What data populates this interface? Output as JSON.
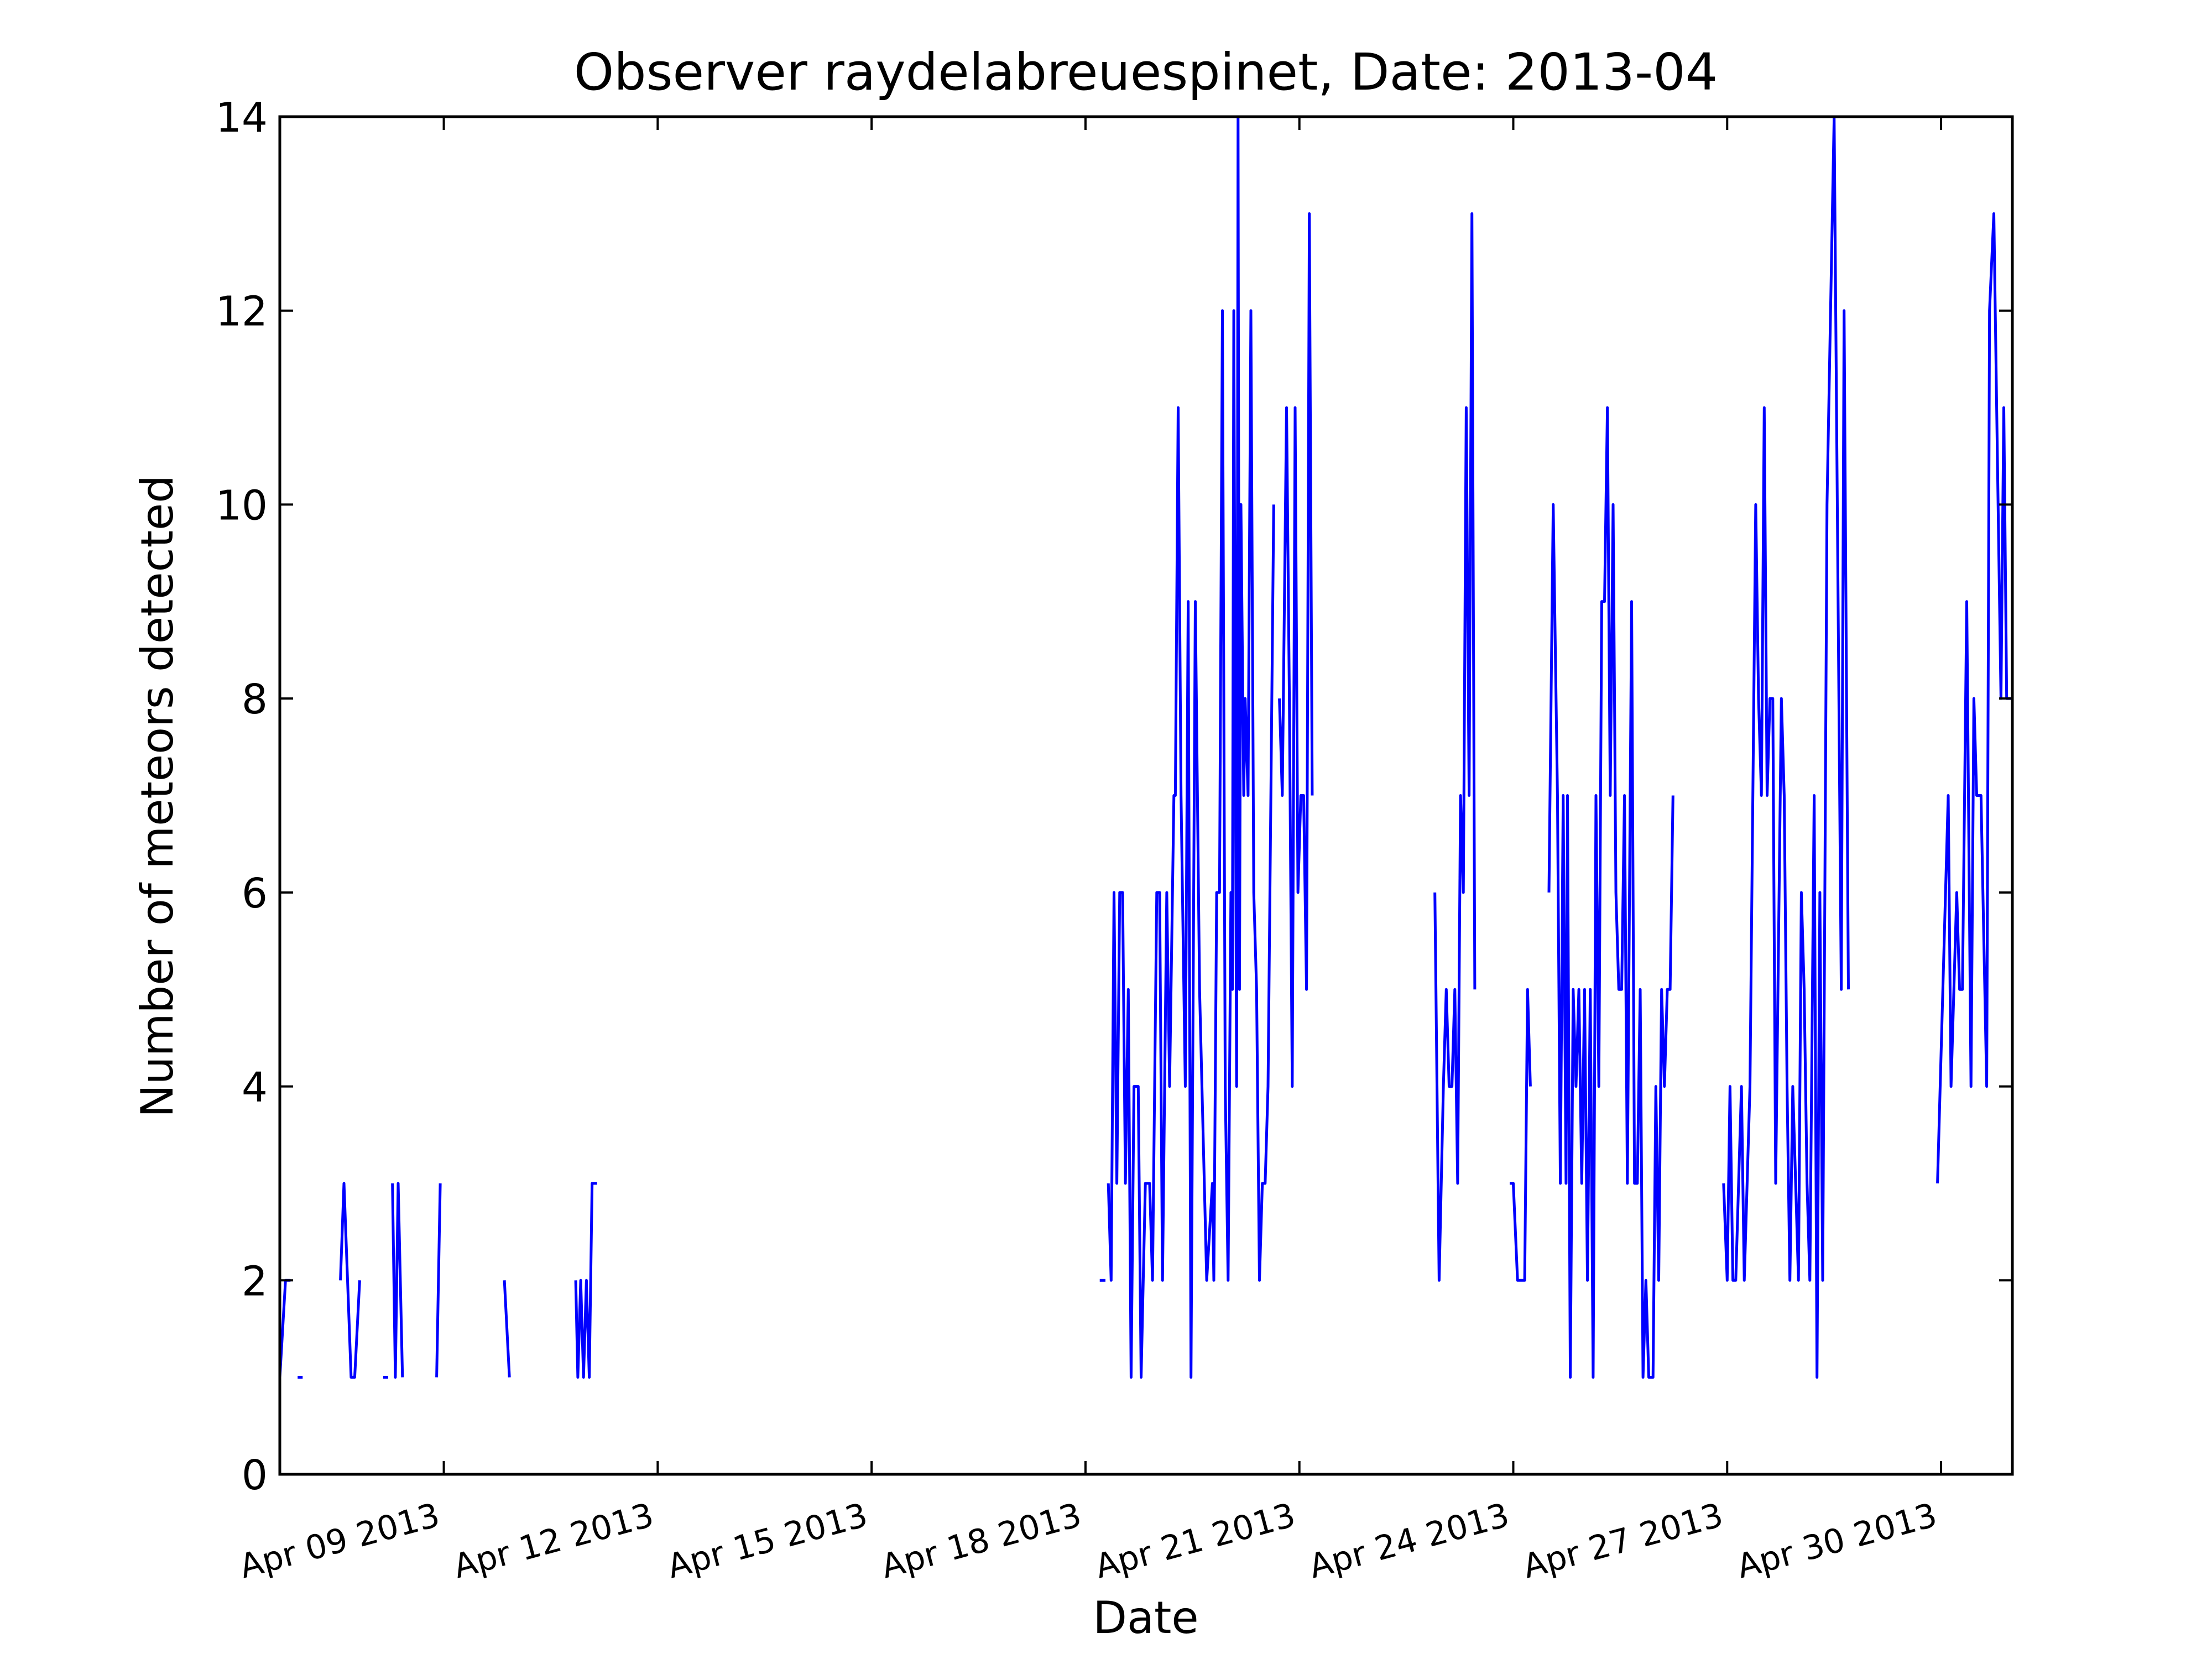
{
  "chart_data": {
    "type": "line",
    "title": "Observer raydelabreuespinet, Date: 2013-04",
    "xlabel": "Date",
    "ylabel": "Number of meteors detected",
    "xlim_days": [
      6.7,
      31.0
    ],
    "ylim": [
      0,
      14
    ],
    "y_ticks": [
      "0",
      "2",
      "4",
      "6",
      "8",
      "10",
      "12",
      "14"
    ],
    "x_ticks": [
      {
        "day": 9,
        "label": "Apr 09 2013"
      },
      {
        "day": 12,
        "label": "Apr 12 2013"
      },
      {
        "day": 15,
        "label": "Apr 15 2013"
      },
      {
        "day": 18,
        "label": "Apr 18 2013"
      },
      {
        "day": 21,
        "label": "Apr 21 2013"
      },
      {
        "day": 24,
        "label": "Apr 24 2013"
      },
      {
        "day": 27,
        "label": "Apr 27 2013"
      },
      {
        "day": 30,
        "label": "Apr 30 2013"
      }
    ],
    "grid": false,
    "line_color": "#0000ff",
    "series": [
      {
        "name": "Number of meteors detected",
        "segments": [
          [
            [
              6.7,
              1
            ],
            [
              6.78,
              2
            ],
            [
              6.85,
              2
            ]
          ],
          [
            [
              6.95,
              1
            ],
            [
              7.02,
              1
            ]
          ],
          [
            [
              7.55,
              2
            ],
            [
              7.6,
              3
            ],
            [
              7.65,
              2
            ],
            [
              7.7,
              1
            ],
            [
              7.75,
              1
            ],
            [
              7.82,
              2
            ]
          ],
          [
            [
              8.15,
              1
            ],
            [
              8.22,
              1
            ]
          ],
          [
            [
              8.28,
              3
            ],
            [
              8.32,
              1
            ],
            [
              8.36,
              3
            ],
            [
              8.42,
              1
            ]
          ],
          [
            [
              8.9,
              1
            ],
            [
              8.95,
              3
            ]
          ],
          [
            [
              9.85,
              2
            ],
            [
              9.92,
              1
            ]
          ],
          [
            [
              10.85,
              2
            ],
            [
              10.88,
              1
            ],
            [
              10.92,
              2
            ],
            [
              10.96,
              1
            ],
            [
              11.0,
              2
            ],
            [
              11.04,
              1
            ],
            [
              11.08,
              3
            ],
            [
              11.15,
              3
            ]
          ],
          [
            [
              18.2,
              2
            ],
            [
              18.28,
              2
            ]
          ],
          [
            [
              18.32,
              3
            ],
            [
              18.36,
              2
            ],
            [
              18.4,
              6
            ],
            [
              18.44,
              3
            ],
            [
              18.48,
              6
            ],
            [
              18.52,
              6
            ],
            [
              18.56,
              3
            ],
            [
              18.6,
              5
            ],
            [
              18.64,
              1
            ],
            [
              18.68,
              4
            ],
            [
              18.74,
              4
            ],
            [
              18.78,
              1
            ],
            [
              18.84,
              3
            ],
            [
              18.9,
              3
            ],
            [
              18.94,
              2
            ],
            [
              19.0,
              6
            ],
            [
              19.04,
              6
            ],
            [
              19.08,
              2
            ],
            [
              19.14,
              6
            ],
            [
              19.18,
              4
            ],
            [
              19.24,
              7
            ],
            [
              19.26,
              7
            ],
            [
              19.3,
              11
            ],
            [
              19.34,
              7
            ],
            [
              19.4,
              4
            ],
            [
              19.44,
              9
            ],
            [
              19.48,
              1
            ],
            [
              19.54,
              9
            ],
            [
              19.6,
              5
            ],
            [
              19.7,
              2
            ],
            [
              19.78,
              3
            ],
            [
              19.8,
              2
            ],
            [
              19.84,
              6
            ],
            [
              19.88,
              6
            ],
            [
              19.92,
              12
            ],
            [
              19.96,
              4
            ],
            [
              20.0,
              2
            ],
            [
              20.04,
              6
            ],
            [
              20.06,
              5
            ],
            [
              20.08,
              12
            ],
            [
              20.12,
              4
            ],
            [
              20.14,
              14
            ],
            [
              20.16,
              5
            ],
            [
              20.18,
              10
            ],
            [
              20.22,
              7
            ],
            [
              20.24,
              8
            ],
            [
              20.28,
              7
            ],
            [
              20.32,
              12
            ],
            [
              20.36,
              6
            ],
            [
              20.4,
              5
            ],
            [
              20.44,
              2
            ],
            [
              20.48,
              3
            ],
            [
              20.52,
              3
            ],
            [
              20.56,
              4
            ],
            [
              20.64,
              10
            ]
          ],
          [
            [
              20.72,
              8
            ],
            [
              20.76,
              7
            ],
            [
              20.82,
              11
            ],
            [
              20.86,
              8
            ],
            [
              20.9,
              4
            ],
            [
              20.94,
              11
            ],
            [
              20.98,
              6
            ],
            [
              21.02,
              7
            ],
            [
              21.06,
              7
            ],
            [
              21.1,
              5
            ],
            [
              21.14,
              13
            ],
            [
              21.18,
              7
            ]
          ],
          [
            [
              22.9,
              6
            ],
            [
              22.96,
              2
            ],
            [
              23.02,
              4
            ],
            [
              23.06,
              5
            ],
            [
              23.1,
              4
            ],
            [
              23.14,
              4
            ],
            [
              23.18,
              5
            ],
            [
              23.22,
              3
            ],
            [
              23.26,
              7
            ],
            [
              23.3,
              6
            ],
            [
              23.34,
              11
            ],
            [
              23.38,
              7
            ],
            [
              23.42,
              13
            ],
            [
              23.46,
              5
            ]
          ],
          [
            [
              23.95,
              3
            ],
            [
              24.0,
              3
            ],
            [
              24.06,
              2
            ],
            [
              24.1,
              2
            ],
            [
              24.16,
              2
            ],
            [
              24.2,
              5
            ],
            [
              24.24,
              4
            ]
          ],
          [
            [
              24.5,
              6
            ],
            [
              24.56,
              10
            ],
            [
              24.62,
              7
            ],
            [
              24.66,
              3
            ],
            [
              24.7,
              7
            ],
            [
              24.74,
              3
            ],
            [
              24.76,
              7
            ],
            [
              24.8,
              1
            ],
            [
              24.84,
              5
            ],
            [
              24.88,
              4
            ],
            [
              24.92,
              5
            ],
            [
              24.96,
              3
            ],
            [
              25.0,
              5
            ],
            [
              25.04,
              2
            ],
            [
              25.08,
              5
            ],
            [
              25.12,
              1
            ],
            [
              25.16,
              7
            ],
            [
              25.2,
              4
            ],
            [
              25.24,
              9
            ],
            [
              25.28,
              9
            ],
            [
              25.32,
              11
            ],
            [
              25.36,
              7
            ],
            [
              25.4,
              10
            ],
            [
              25.44,
              6
            ],
            [
              25.48,
              5
            ],
            [
              25.52,
              5
            ],
            [
              25.56,
              7
            ],
            [
              25.6,
              3
            ],
            [
              25.66,
              9
            ],
            [
              25.7,
              3
            ],
            [
              25.74,
              3
            ],
            [
              25.78,
              5
            ],
            [
              25.82,
              1
            ],
            [
              25.86,
              2
            ],
            [
              25.9,
              1
            ],
            [
              25.96,
              1
            ],
            [
              26.0,
              4
            ],
            [
              26.04,
              2
            ],
            [
              26.08,
              5
            ],
            [
              26.12,
              4
            ],
            [
              26.16,
              5
            ],
            [
              26.2,
              5
            ],
            [
              26.24,
              7
            ]
          ],
          [
            [
              26.95,
              3
            ],
            [
              27.0,
              2
            ],
            [
              27.04,
              4
            ],
            [
              27.08,
              2
            ],
            [
              27.12,
              2
            ],
            [
              27.2,
              4
            ],
            [
              27.24,
              2
            ],
            [
              27.32,
              4
            ],
            [
              27.4,
              10
            ],
            [
              27.44,
              8
            ],
            [
              27.48,
              7
            ],
            [
              27.52,
              11
            ],
            [
              27.56,
              7
            ],
            [
              27.6,
              8
            ],
            [
              27.64,
              8
            ],
            [
              27.68,
              3
            ],
            [
              27.76,
              8
            ],
            [
              27.8,
              7
            ],
            [
              27.84,
              4
            ],
            [
              27.88,
              2
            ],
            [
              27.92,
              4
            ],
            [
              27.96,
              3
            ],
            [
              28.0,
              2
            ],
            [
              28.04,
              6
            ],
            [
              28.08,
              5
            ],
            [
              28.12,
              3
            ],
            [
              28.16,
              2
            ],
            [
              28.22,
              7
            ],
            [
              28.26,
              1
            ],
            [
              28.3,
              6
            ],
            [
              28.34,
              2
            ],
            [
              28.4,
              10
            ],
            [
              28.5,
              14
            ],
            [
              28.6,
              5
            ],
            [
              28.64,
              12
            ],
            [
              28.7,
              5
            ]
          ],
          [
            [
              29.95,
              3
            ],
            [
              30.1,
              7
            ],
            [
              30.14,
              4
            ],
            [
              30.22,
              6
            ],
            [
              30.26,
              5
            ],
            [
              30.3,
              5
            ],
            [
              30.36,
              9
            ],
            [
              30.42,
              4
            ],
            [
              30.46,
              8
            ],
            [
              30.5,
              7
            ],
            [
              30.56,
              7
            ],
            [
              30.64,
              4
            ],
            [
              30.68,
              12
            ],
            [
              30.74,
              13
            ],
            [
              30.78,
              11
            ],
            [
              30.84,
              8
            ],
            [
              30.88,
              11
            ],
            [
              30.92,
              8
            ],
            [
              31.0,
              8
            ]
          ]
        ]
      }
    ]
  }
}
